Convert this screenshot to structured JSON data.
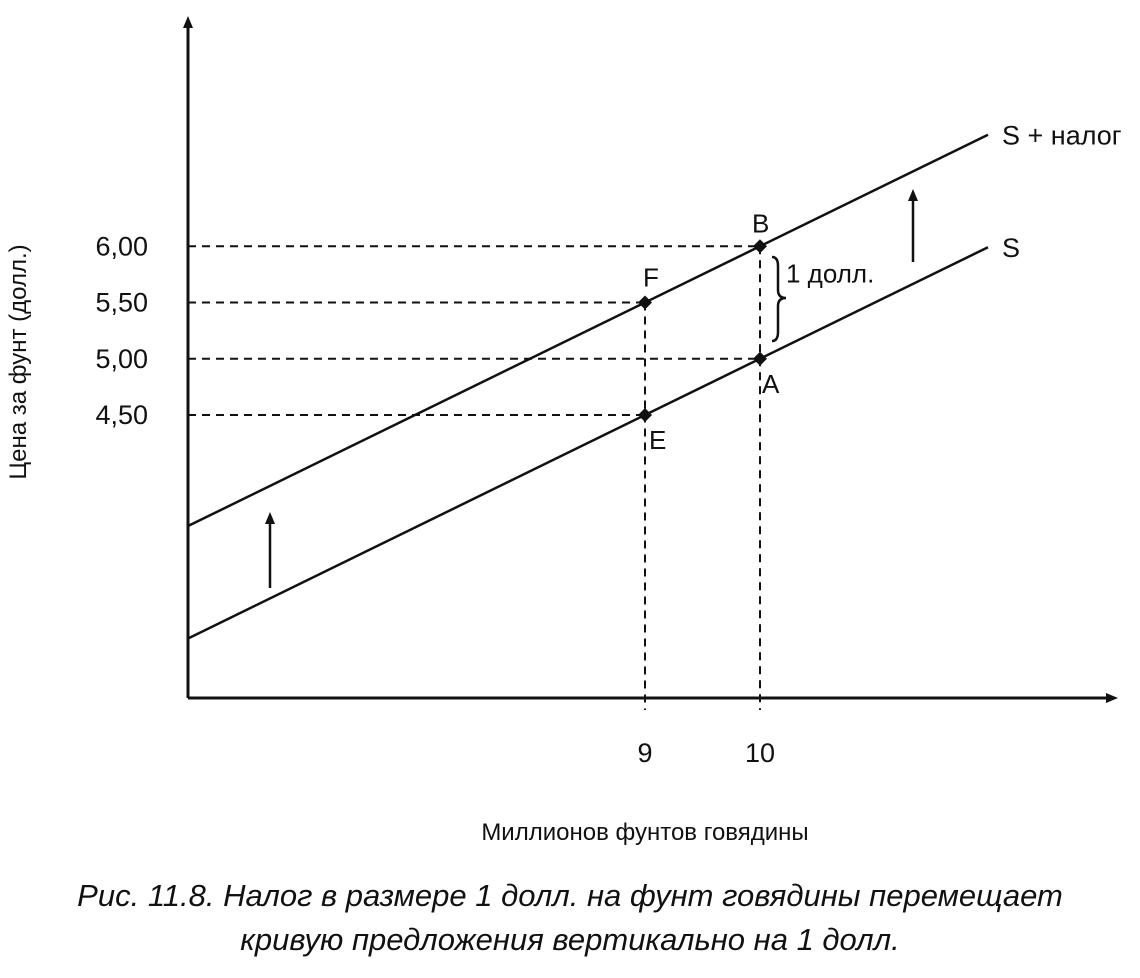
{
  "chart_data": {
    "type": "line",
    "xlabel": "Миллионов фунтов говядины",
    "ylabel": "Цена за фунт (долл.)",
    "x_ticks": [
      "9",
      "10"
    ],
    "y_ticks": [
      "4,50",
      "5,00",
      "5,50",
      "6,00"
    ],
    "series": [
      {
        "name": "S + налог",
        "x": [
          9,
          10
        ],
        "y": [
          5.5,
          6.0
        ]
      },
      {
        "name": "S",
        "x": [
          9,
          10
        ],
        "y": [
          4.5,
          5.0
        ]
      }
    ],
    "points": [
      {
        "label": "E",
        "x": 9,
        "y": 4.5
      },
      {
        "label": "F",
        "x": 9,
        "y": 5.5
      },
      {
        "label": "A",
        "x": 10,
        "y": 5.0
      },
      {
        "label": "B",
        "x": 10,
        "y": 6.0
      }
    ],
    "annotations": [
      "1 долл."
    ],
    "grid": false
  },
  "caption": {
    "line1": "Рис. 11.8. Налог в размере 1 долл. на фунт говядины перемещает",
    "line2": "кривую предложения вертикально на 1 долл."
  }
}
